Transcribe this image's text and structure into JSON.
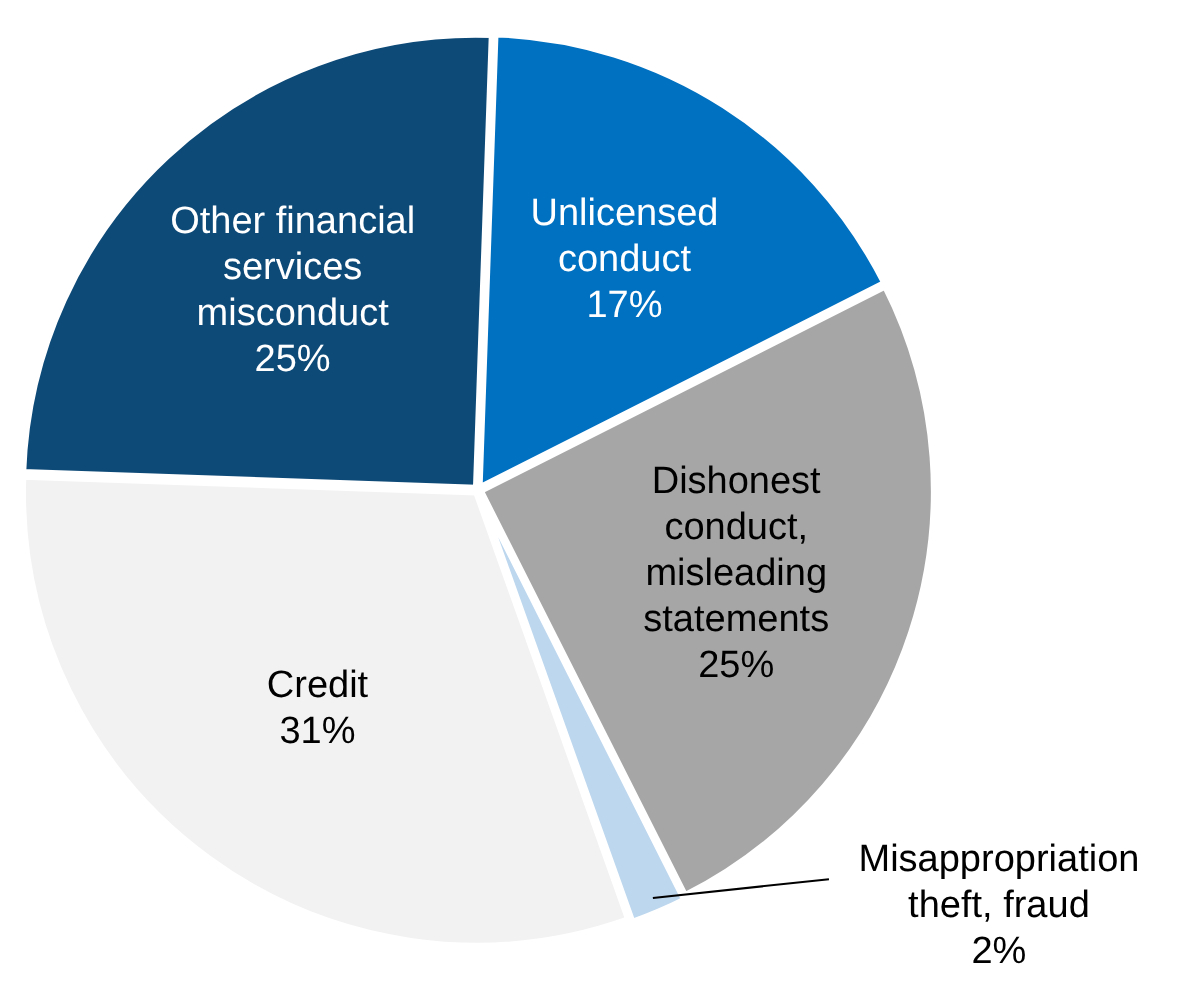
{
  "chart_data": {
    "type": "pie",
    "categories": [
      "Unlicensed conduct",
      "Dishonest conduct, misleading statements",
      "Misappropriation theft, fraud",
      "Credit",
      "Other financial services misconduct"
    ],
    "values": [
      17,
      25,
      2,
      31,
      25
    ],
    "colors": [
      "#0070c0",
      "#a6a6a6",
      "#bdd7ee",
      "#f2f2f2",
      "#0e4a78"
    ],
    "value_labels": [
      "17%",
      "25%",
      "2%",
      "31%",
      "25%"
    ]
  }
}
